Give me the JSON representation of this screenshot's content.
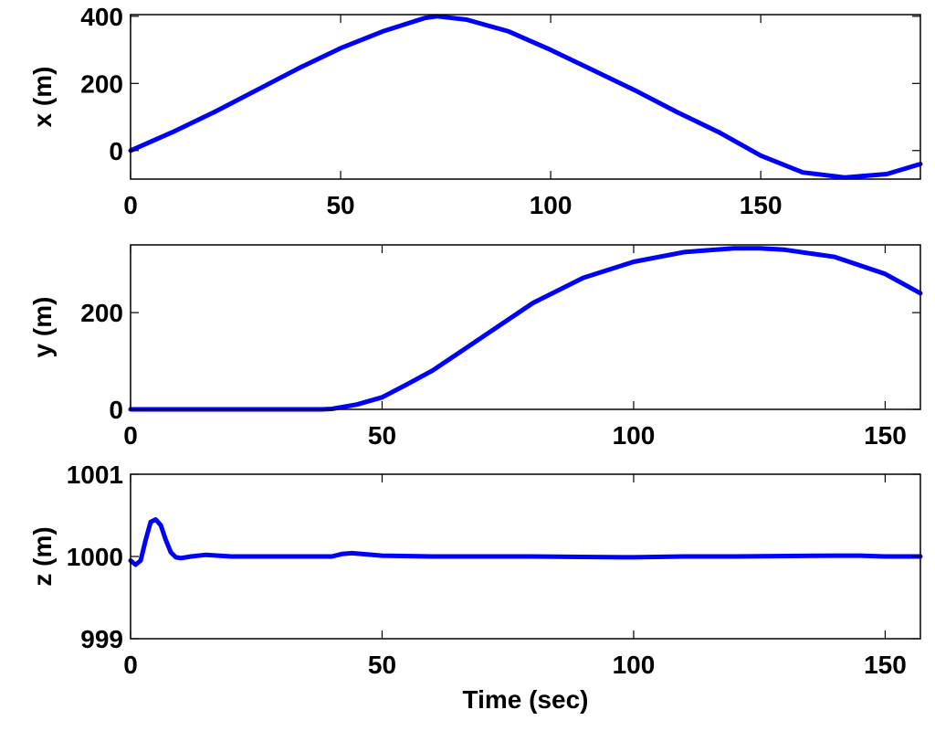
{
  "chart_data": [
    {
      "type": "line",
      "title": "",
      "xlabel": "",
      "ylabel": "x (m)",
      "xlim": [
        0,
        188
      ],
      "ylim": [
        -85,
        405
      ],
      "xticks": [
        0,
        50,
        100,
        150
      ],
      "yticks": [
        0,
        200,
        400
      ],
      "grid": false,
      "color": "#0000ff",
      "series": [
        {
          "x": [
            0,
            10,
            20,
            30,
            40,
            50,
            60,
            70,
            73,
            80,
            90,
            100,
            110,
            120,
            130,
            140,
            150,
            160,
            170,
            180,
            188
          ],
          "y": [
            0,
            55,
            115,
            180,
            245,
            305,
            355,
            395,
            400,
            390,
            355,
            300,
            240,
            180,
            115,
            55,
            -15,
            -65,
            -80,
            -70,
            -40
          ]
        }
      ]
    },
    {
      "type": "line",
      "title": "",
      "xlabel": "",
      "ylabel": "y (m)",
      "xlim": [
        0,
        157
      ],
      "ylim": [
        0,
        340
      ],
      "xticks": [
        0,
        50,
        100,
        150
      ],
      "yticks": [
        0,
        200
      ],
      "grid": false,
      "color": "#0000ff",
      "series": [
        {
          "x": [
            0,
            10,
            20,
            30,
            38,
            40,
            45,
            50,
            55,
            60,
            70,
            80,
            90,
            100,
            110,
            120,
            125,
            130,
            140,
            150,
            157
          ],
          "y": [
            0,
            0,
            0,
            0,
            0,
            1,
            10,
            25,
            52,
            80,
            150,
            220,
            272,
            305,
            325,
            333,
            333,
            330,
            315,
            280,
            240
          ]
        }
      ]
    },
    {
      "type": "line",
      "title": "",
      "xlabel": "Time (sec)",
      "ylabel": "z (m)",
      "xlim": [
        0,
        157
      ],
      "ylim": [
        999,
        1001
      ],
      "xticks": [
        0,
        50,
        100,
        150
      ],
      "yticks": [
        999,
        1000,
        1001
      ],
      "grid": false,
      "color": "#0000ff",
      "series": [
        {
          "x": [
            0,
            1,
            2,
            3,
            4,
            5,
            6,
            7,
            8,
            9,
            10,
            12,
            15,
            20,
            30,
            40,
            42,
            44,
            46,
            50,
            60,
            80,
            98,
            100,
            110,
            120,
            140,
            145,
            150,
            157
          ],
          "y": [
            999.95,
            999.9,
            999.95,
            1000.2,
            1000.42,
            1000.45,
            1000.38,
            1000.2,
            1000.05,
            999.99,
            999.98,
            1000.0,
            1000.02,
            1000.0,
            1000.0,
            1000.0,
            1000.03,
            1000.04,
            1000.03,
            1000.01,
            1000.0,
            1000.0,
            999.99,
            999.99,
            1000.0,
            1000.0,
            1000.01,
            1000.01,
            1000.0,
            1000.0
          ]
        }
      ]
    }
  ]
}
